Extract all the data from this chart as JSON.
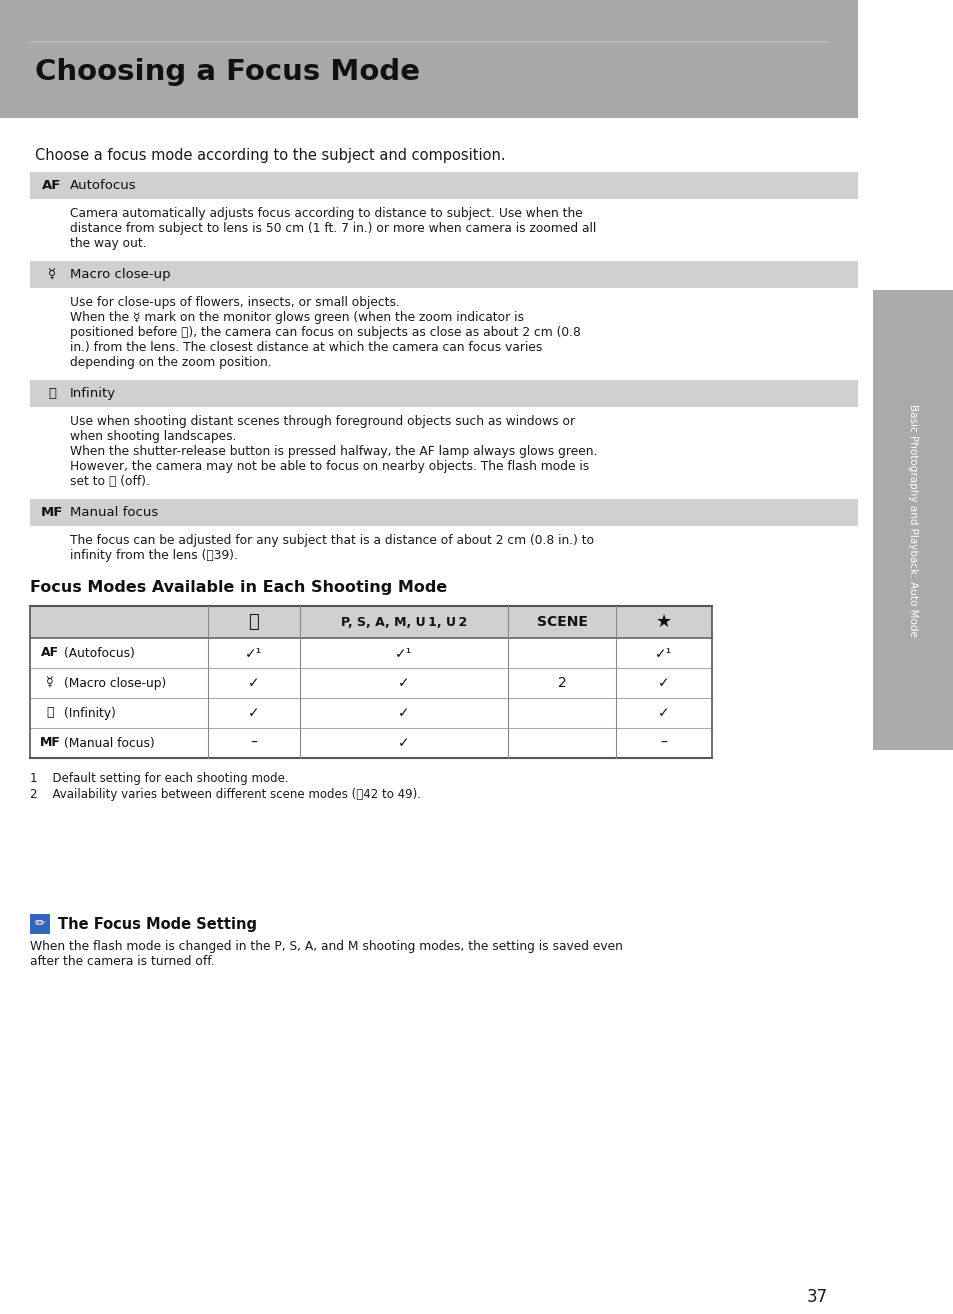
{
  "title": "Choosing a Focus Mode",
  "subtitle": "Choose a focus mode according to the subject and composition.",
  "header_bg": "#a8a8a8",
  "page_bg": "#ffffff",
  "row_header_bg": "#d0d0d0",
  "sidebar_bg": "#aaaaaa",
  "sidebar_text": "Basic Photography and Playback: Auto Mode",
  "page_number": "37",
  "sections": [
    {
      "icon": "AF",
      "name": "Autofocus",
      "desc": [
        "Camera automatically adjusts focus according to distance to subject. Use when the",
        "distance from subject to lens is 50 cm (1 ft. 7 in.) or more when camera is zoomed all",
        "the way out."
      ]
    },
    {
      "icon": "☿",
      "name": "Macro close-up",
      "desc": [
        "Use for close-ups of flowers, insects, or small objects.",
        "When the ☿ mark on the monitor glows green (when the zoom indicator is",
        "positioned before ⛰), the camera can focus on subjects as close as about 2 cm (0.8",
        "in.) from the lens. The closest distance at which the camera can focus varies",
        "depending on the zoom position."
      ]
    },
    {
      "icon": "⛰",
      "name": "Infinity",
      "desc": [
        "Use when shooting distant scenes through foreground objects such as windows or",
        "when shooting landscapes.",
        "When the shutter-release button is pressed halfway, the AF lamp always glows green.",
        "However, the camera may not be able to focus on nearby objects. The flash mode is",
        "set to ⓘ (off)."
      ]
    },
    {
      "icon": "MF",
      "name": "Manual focus",
      "desc": [
        "The focus can be adjusted for any subject that is a distance of about 2 cm (0.8 in.) to",
        "infinity from the lens (📶39)."
      ]
    }
  ],
  "table_title": "Focus Modes Available in Each Shooting Mode",
  "table_col_headers": [
    "📷",
    "P, S, A, M, U 1, U 2",
    "SCENE",
    "★"
  ],
  "table_rows": [
    {
      "icon": "AF",
      "label": "(Autofocus)",
      "c1": "✓¹",
      "c2": "✓¹",
      "c3": "",
      "c4": "✓¹"
    },
    {
      "icon": "☿",
      "label": "(Macro close-up)",
      "c1": "✓",
      "c2": "✓",
      "c3": "2",
      "c4": "✓"
    },
    {
      "icon": "⛰",
      "label": "(Infinity)",
      "c1": "✓",
      "c2": "✓",
      "c3": "",
      "c4": "✓"
    },
    {
      "icon": "MF",
      "label": "(Manual focus)",
      "c1": "–",
      "c2": "✓",
      "c3": "",
      "c4": "–"
    }
  ],
  "footnotes": [
    "1    Default setting for each shooting mode.",
    "2    Availability varies between different scene modes (📳42 to 49)."
  ],
  "note_title": "The Focus Mode Setting",
  "note_lines": [
    "When the flash mode is changed in the P, S, A, and M shooting modes, the setting is saved even",
    "after the camera is turned off."
  ]
}
